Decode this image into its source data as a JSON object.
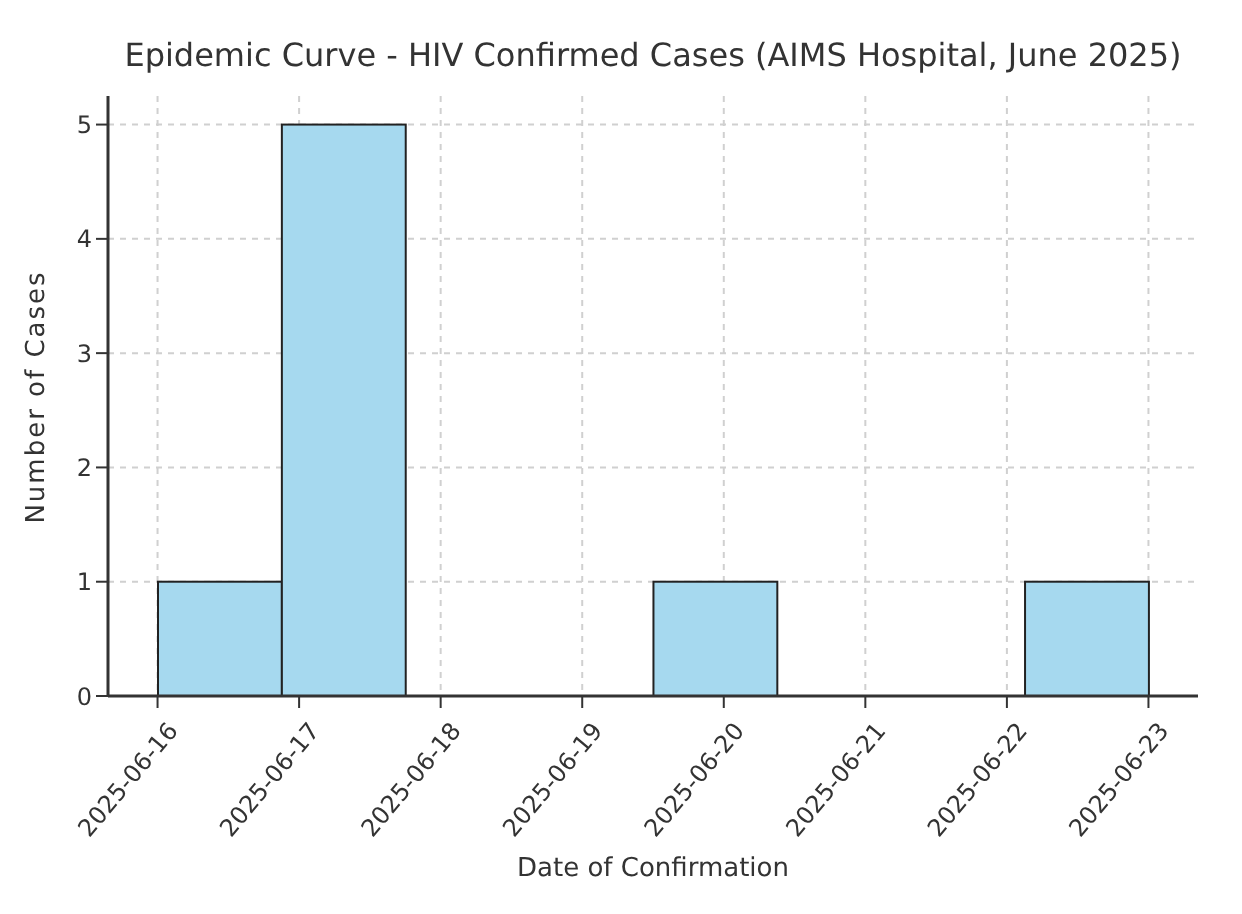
{
  "chart_data": {
    "type": "histogram",
    "title": "Epidemic Curve - HIV Confirmed Cases (AIMS Hospital, June 2025)",
    "xlabel": "Date of Confirmation",
    "ylabel": "Number of Cases",
    "bins": [
      "2025-06-16",
      "2025-06-16T21:00",
      "2025-06-17T18:00",
      "2025-06-18T15:00",
      "2025-06-19T12:00",
      "2025-06-20T09:00",
      "2025-06-21T06:00",
      "2025-06-22T03:00",
      "2025-06-23"
    ],
    "values": [
      1,
      5,
      0,
      0,
      1,
      0,
      0,
      1
    ],
    "color": "#a6d9ef",
    "xlim": [
      "2025-06-15T15:36",
      "2025-06-23T08:24"
    ],
    "xticks": [
      "2025-06-16",
      "2025-06-17",
      "2025-06-18",
      "2025-06-19",
      "2025-06-20",
      "2025-06-21",
      "2025-06-22",
      "2025-06-23"
    ],
    "ylim": [
      0,
      5.25
    ],
    "yticks": [
      0,
      1,
      2,
      3,
      4,
      5
    ],
    "grid": true
  }
}
